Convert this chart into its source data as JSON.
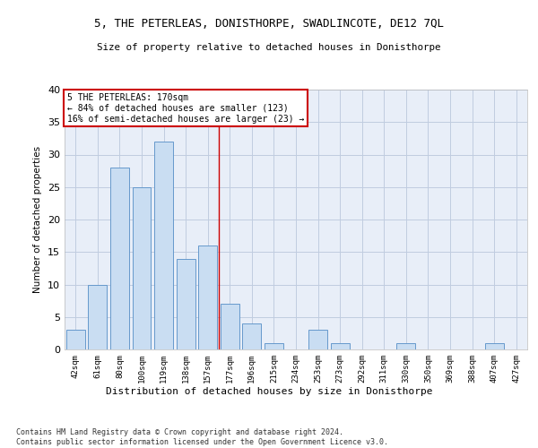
{
  "title1": "5, THE PETERLEAS, DONISTHORPE, SWADLINCOTE, DE12 7QL",
  "title2": "Size of property relative to detached houses in Donisthorpe",
  "xlabel": "Distribution of detached houses by size in Donisthorpe",
  "ylabel": "Number of detached properties",
  "categories": [
    "42sqm",
    "61sqm",
    "80sqm",
    "100sqm",
    "119sqm",
    "138sqm",
    "157sqm",
    "177sqm",
    "196sqm",
    "215sqm",
    "234sqm",
    "253sqm",
    "273sqm",
    "292sqm",
    "311sqm",
    "330sqm",
    "350sqm",
    "369sqm",
    "388sqm",
    "407sqm",
    "427sqm"
  ],
  "values": [
    3,
    10,
    28,
    25,
    32,
    14,
    16,
    7,
    4,
    1,
    0,
    3,
    1,
    0,
    0,
    1,
    0,
    0,
    0,
    1,
    0
  ],
  "bar_color": "#c9ddf2",
  "bar_edge_color": "#6699cc",
  "grid_color": "#c0cce0",
  "bg_color": "#e8eef8",
  "vline_x": 6.5,
  "annotation_text": "5 THE PETERLEAS: 170sqm\n← 84% of detached houses are smaller (123)\n16% of semi-detached houses are larger (23) →",
  "annotation_box_color": "#ffffff",
  "annotation_box_edge": "#cc0000",
  "footnote": "Contains HM Land Registry data © Crown copyright and database right 2024.\nContains public sector information licensed under the Open Government Licence v3.0.",
  "ylim": [
    0,
    40
  ],
  "yticks": [
    0,
    5,
    10,
    15,
    20,
    25,
    30,
    35,
    40
  ]
}
